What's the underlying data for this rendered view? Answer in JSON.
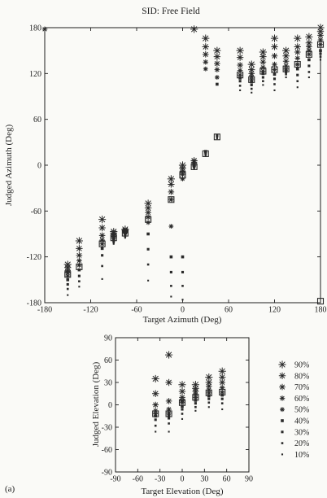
{
  "figure": {
    "panel_label": "(a)"
  },
  "chart_data": [
    {
      "type": "scatter",
      "title": "SID: Free Field",
      "xlabel": "Target Azimuth (Deg)",
      "ylabel": "Judged Azimuth (Deg)",
      "xlim": [
        -180,
        180
      ],
      "ylim": [
        -180,
        180
      ],
      "xticks": [
        "-180",
        "-120",
        "-60",
        "0",
        "60",
        "120",
        "180"
      ],
      "yticks": [
        "-180",
        "-120",
        "-60",
        "0",
        "60",
        "120",
        "180"
      ],
      "grid": false,
      "columns": [
        {
          "x": -150,
          "square": -143,
          "p": [
            -130,
            -134,
            -138,
            -141,
            -145,
            -150,
            -156,
            -162,
            -170
          ]
        },
        {
          "x": -135,
          "square": -133,
          "p": [
            -99,
            -109,
            -118,
            -125,
            -131,
            -137,
            -145,
            -152,
            -159
          ]
        },
        {
          "x": -105,
          "square": -103,
          "p": [
            -71,
            -82,
            -92,
            -98,
            -103,
            -109,
            -118,
            -132,
            -149
          ]
        },
        {
          "x": -90,
          "square": -95,
          "p": [
            -87,
            -89,
            -91,
            -93,
            -95,
            -97,
            -99,
            -101,
            -103
          ]
        },
        {
          "x": -75,
          "square": -89,
          "p": [
            -84,
            -85,
            -86,
            -87,
            -88,
            -89,
            -91,
            -93,
            -95
          ]
        },
        {
          "x": -45,
          "square": -71,
          "p": [
            -50,
            -56,
            -62,
            -68,
            -75,
            -90,
            -110,
            -130,
            -151
          ]
        },
        {
          "x": -15,
          "square": -45,
          "p": [
            -18,
            -25,
            -35,
            -45,
            -80,
            -120,
            -140,
            -158,
            -172
          ]
        },
        {
          "x": 0,
          "square": -13,
          "p": [
            0,
            -4,
            -8,
            -12,
            -18,
            -120,
            -140,
            -158,
            -176
          ]
        },
        {
          "x": 15,
          "square": -2,
          "p": [
            178,
            6,
            4,
            2,
            0,
            -1,
            -2,
            -3,
            -5
          ]
        },
        {
          "x": 30,
          "square": 15,
          "p": [
            166,
            155,
            145,
            135,
            126,
            18,
            16,
            14,
            12
          ]
        },
        {
          "x": 45,
          "square": 37,
          "p": [
            150,
            142,
            133,
            125,
            115,
            106,
            39,
            37,
            35
          ]
        },
        {
          "x": 75,
          "square": 118,
          "p": [
            150,
            141,
            131,
            124,
            118,
            114,
            110,
            104,
            98
          ]
        },
        {
          "x": 90,
          "square": 112,
          "p": [
            132,
            125,
            120,
            116,
            112,
            109,
            105,
            100,
            95
          ]
        },
        {
          "x": 105,
          "square": 123,
          "p": [
            148,
            142,
            135,
            128,
            123,
            120,
            115,
            110,
            105
          ]
        },
        {
          "x": 120,
          "square": 125,
          "p": [
            166,
            155,
            143,
            132,
            125,
            119,
            113,
            106,
            98
          ]
        },
        {
          "x": 135,
          "square": 126,
          "p": [
            150,
            143,
            136,
            130,
            126,
            124,
            122,
            119,
            115
          ]
        },
        {
          "x": 150,
          "square": 132,
          "p": [
            166,
            155,
            148,
            140,
            132,
            126,
            118,
            110,
            102
          ]
        },
        {
          "x": 165,
          "square": 145,
          "p": [
            168,
            160,
            155,
            150,
            145,
            138,
            130,
            122,
            115
          ]
        },
        {
          "x": 180,
          "square": 158,
          "p": [
            180,
            175,
            170,
            164,
            158,
            150,
            146,
            142,
            138
          ]
        }
      ],
      "extra_points": [
        {
          "x": -180,
          "y": 178,
          "p_index": 3
        }
      ],
      "extra_squares": [
        {
          "x": 180,
          "y": -178
        }
      ]
    },
    {
      "type": "scatter",
      "xlabel": "Target Elevation (Deg)",
      "ylabel": "Judged Elevation (Deg)",
      "xlim": [
        -90,
        90
      ],
      "ylim": [
        -90,
        90
      ],
      "xticks": [
        "-90",
        "-60",
        "-30",
        "0",
        "30",
        "60",
        "90"
      ],
      "yticks": [
        "-90",
        "-60",
        "-30",
        "0",
        "30",
        "60",
        "90"
      ],
      "grid": false,
      "legend": {
        "position": "right",
        "entries": [
          "90%",
          "80%",
          "70%",
          "60%",
          "50%",
          "40%",
          "30%",
          "20%",
          "10%"
        ]
      },
      "columns": [
        {
          "x": -36,
          "square": -12,
          "p": [
            35,
            15,
            0,
            -8,
            -12,
            -15,
            -20,
            -28,
            -36
          ]
        },
        {
          "x": -18,
          "square": -12,
          "p": [
            67,
            30,
            5,
            -6,
            -11,
            -14,
            -18,
            -25,
            -36
          ]
        },
        {
          "x": 0,
          "square": 3,
          "p": [
            27,
            18,
            10,
            6,
            3,
            -2,
            -6,
            -12,
            -19
          ]
        },
        {
          "x": 18,
          "square": 10,
          "p": [
            27,
            22,
            18,
            14,
            10,
            6,
            2,
            -3,
            -8
          ]
        },
        {
          "x": 36,
          "square": 16,
          "p": [
            37,
            30,
            25,
            20,
            16,
            12,
            8,
            3,
            -3
          ]
        },
        {
          "x": 54,
          "square": 17,
          "p": [
            45,
            37,
            30,
            23,
            17,
            13,
            8,
            2,
            -6
          ]
        }
      ]
    }
  ]
}
